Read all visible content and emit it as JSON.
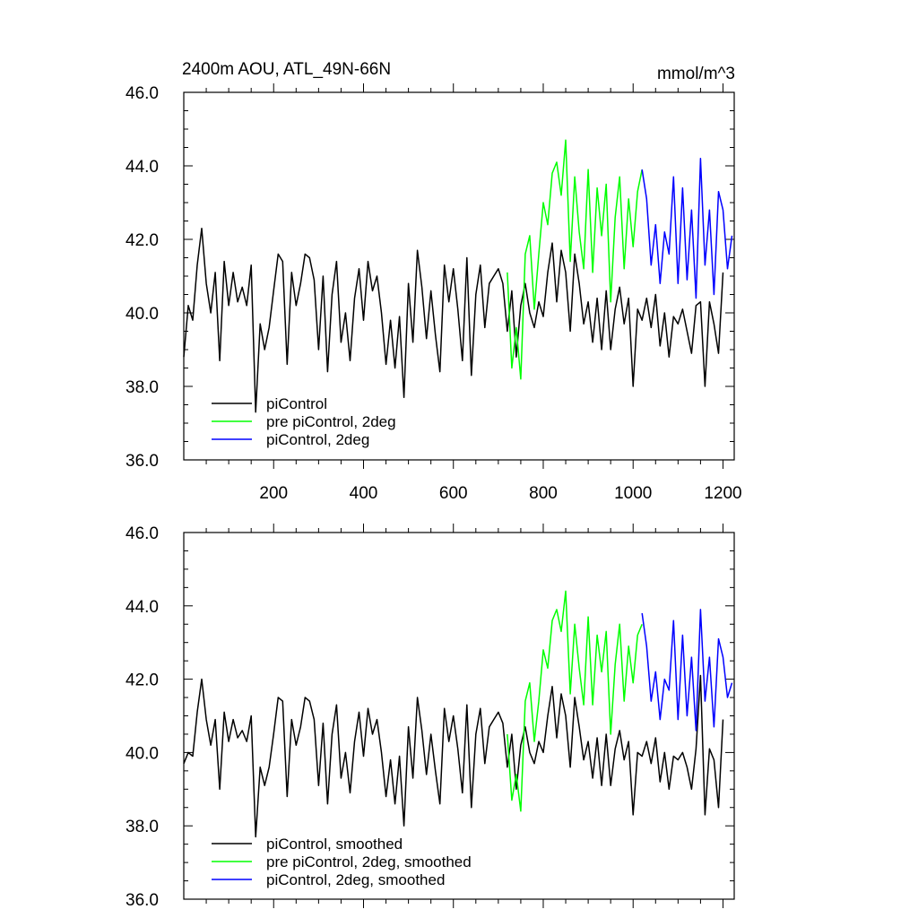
{
  "figure": {
    "title_left": "2400m AOU, ATL_49N-66N",
    "title_right": "mmol/m^3"
  },
  "chart_data": [
    {
      "type": "line",
      "title": "2400m AOU, ATL_49N-66N",
      "units": "mmol/m^3",
      "xlim": [
        0,
        1225
      ],
      "ylim": [
        36,
        46
      ],
      "y_ticks": [
        36,
        38,
        40,
        42,
        44,
        46
      ],
      "y_tick_labels": [
        "36.0",
        "38.0",
        "40.0",
        "42.0",
        "44.0",
        "46.0"
      ],
      "x_ticks": [
        200,
        400,
        600,
        800,
        1000,
        1200
      ],
      "x_tick_labels": [
        "200",
        "400",
        "600",
        "800",
        "1000",
        "1200"
      ],
      "grid": false,
      "legend_position": "bottom-left",
      "series": [
        {
          "name": "piControl",
          "color": "#000000",
          "x": [
            0,
            10,
            20,
            30,
            40,
            50,
            60,
            70,
            80,
            90,
            100,
            110,
            120,
            130,
            140,
            150,
            160,
            170,
            180,
            190,
            200,
            210,
            220,
            230,
            240,
            250,
            260,
            270,
            280,
            290,
            300,
            310,
            320,
            330,
            340,
            350,
            360,
            370,
            380,
            390,
            400,
            410,
            420,
            430,
            440,
            450,
            460,
            470,
            480,
            490,
            500,
            510,
            520,
            530,
            540,
            550,
            560,
            570,
            580,
            590,
            600,
            610,
            620,
            630,
            640,
            650,
            660,
            670,
            680,
            690,
            700,
            710,
            720,
            730,
            740,
            750,
            760,
            770,
            780,
            790,
            800,
            810,
            820,
            830,
            840,
            850,
            860,
            870,
            880,
            890,
            900,
            910,
            920,
            930,
            940,
            950,
            960,
            970,
            980,
            990,
            1000,
            1010,
            1020,
            1030,
            1040,
            1050,
            1060,
            1070,
            1080,
            1090,
            1100,
            1110,
            1120,
            1130,
            1140,
            1150,
            1160,
            1170,
            1180,
            1190,
            1200
          ],
          "values": [
            38.8,
            40.2,
            39.8,
            41.3,
            42.3,
            40.8,
            40.0,
            41.1,
            38.7,
            41.4,
            40.2,
            41.1,
            40.3,
            40.7,
            40.2,
            41.3,
            37.3,
            39.7,
            39.0,
            39.6,
            40.6,
            41.6,
            41.4,
            38.6,
            41.1,
            40.2,
            40.8,
            41.6,
            41.5,
            40.9,
            39.0,
            41.0,
            38.4,
            40.5,
            41.4,
            39.2,
            40.0,
            38.7,
            40.4,
            41.2,
            39.8,
            41.4,
            40.6,
            41.0,
            40.0,
            38.6,
            39.8,
            38.5,
            39.9,
            37.7,
            40.8,
            39.2,
            41.7,
            40.7,
            39.3,
            40.6,
            39.4,
            38.4,
            41.3,
            40.3,
            41.2,
            40.1,
            38.7,
            41.5,
            38.3,
            40.5,
            41.3,
            39.6,
            40.8,
            41.0,
            41.2,
            40.8,
            39.5,
            40.6,
            38.8,
            40.2,
            40.8,
            40.0,
            39.6,
            40.3,
            39.9,
            41.1,
            41.9,
            40.3,
            41.7,
            41.1,
            39.5,
            41.6,
            40.8,
            39.7,
            40.3,
            39.2,
            40.4,
            39.0,
            40.6,
            39.0,
            40.1,
            40.7,
            39.7,
            40.4,
            38.0,
            40.1,
            39.8,
            40.4,
            39.6,
            40.5,
            39.1,
            40.0,
            38.8,
            39.9,
            39.7,
            40.1,
            39.5,
            38.9,
            40.2,
            40.3,
            38.0,
            40.3,
            39.7,
            38.9,
            41.1
          ]
        },
        {
          "name": "pre piControl, 2deg",
          "color": "#00ff00",
          "x": [
            720,
            730,
            740,
            750,
            760,
            770,
            780,
            790,
            800,
            810,
            820,
            830,
            840,
            850,
            860,
            870,
            880,
            890,
            900,
            910,
            920,
            930,
            940,
            950,
            960,
            970,
            980,
            990,
            1000,
            1010,
            1020
          ],
          "values": [
            41.1,
            38.5,
            39.6,
            38.2,
            41.6,
            42.1,
            40.1,
            41.6,
            43.0,
            42.4,
            43.8,
            44.1,
            43.2,
            44.7,
            41.4,
            43.7,
            42.2,
            41.2,
            43.9,
            41.1,
            43.4,
            42.1,
            43.5,
            40.3,
            42.6,
            43.7,
            41.2,
            43.1,
            41.8,
            43.3,
            43.9
          ]
        },
        {
          "name": "piControl, 2deg",
          "color": "#0000ff",
          "x": [
            1020,
            1030,
            1040,
            1050,
            1060,
            1070,
            1080,
            1090,
            1100,
            1110,
            1120,
            1130,
            1140,
            1150,
            1160,
            1170,
            1180,
            1190,
            1200,
            1210,
            1220
          ],
          "values": [
            43.9,
            43.1,
            41.3,
            42.4,
            40.8,
            42.2,
            41.6,
            43.7,
            40.8,
            43.4,
            40.9,
            42.8,
            40.4,
            44.2,
            41.3,
            42.8,
            40.5,
            43.3,
            42.8,
            41.2,
            42.1
          ]
        }
      ]
    },
    {
      "type": "line",
      "xlim": [
        0,
        1225
      ],
      "ylim": [
        36,
        46
      ],
      "y_ticks": [
        36,
        38,
        40,
        42,
        44,
        46
      ],
      "y_tick_labels": [
        "36.0",
        "38.0",
        "40.0",
        "42.0",
        "44.0",
        "46.0"
      ],
      "x_ticks": [
        200,
        400,
        600,
        800,
        1000,
        1200
      ],
      "grid": false,
      "legend_position": "bottom-left",
      "series": [
        {
          "name": "piControl, smoothed",
          "color": "#000000",
          "x": [
            0,
            10,
            20,
            30,
            40,
            50,
            60,
            70,
            80,
            90,
            100,
            110,
            120,
            130,
            140,
            150,
            160,
            170,
            180,
            190,
            200,
            210,
            220,
            230,
            240,
            250,
            260,
            270,
            280,
            290,
            300,
            310,
            320,
            330,
            340,
            350,
            360,
            370,
            380,
            390,
            400,
            410,
            420,
            430,
            440,
            450,
            460,
            470,
            480,
            490,
            500,
            510,
            520,
            530,
            540,
            550,
            560,
            570,
            580,
            590,
            600,
            610,
            620,
            630,
            640,
            650,
            660,
            670,
            680,
            690,
            700,
            710,
            720,
            730,
            740,
            750,
            760,
            770,
            780,
            790,
            800,
            810,
            820,
            830,
            840,
            850,
            860,
            870,
            880,
            890,
            900,
            910,
            920,
            930,
            940,
            950,
            960,
            970,
            980,
            990,
            1000,
            1010,
            1020,
            1030,
            1040,
            1050,
            1060,
            1070,
            1080,
            1090,
            1100,
            1110,
            1120,
            1130,
            1140,
            1150,
            1160,
            1170,
            1180,
            1190,
            1200
          ],
          "values": [
            39.7,
            40.0,
            39.9,
            41.1,
            42.0,
            40.9,
            40.2,
            40.9,
            39.0,
            41.1,
            40.3,
            40.9,
            40.4,
            40.6,
            40.3,
            41.0,
            37.7,
            39.6,
            39.1,
            39.6,
            40.5,
            41.5,
            41.4,
            38.8,
            40.9,
            40.2,
            40.7,
            41.5,
            41.4,
            40.9,
            39.1,
            40.8,
            38.6,
            40.5,
            41.3,
            39.3,
            40.0,
            38.9,
            40.3,
            41.1,
            39.9,
            41.2,
            40.5,
            40.9,
            40.0,
            38.8,
            39.8,
            38.6,
            39.9,
            38.0,
            40.7,
            39.3,
            41.5,
            40.6,
            39.4,
            40.5,
            39.5,
            38.6,
            41.2,
            40.3,
            41.0,
            40.1,
            38.9,
            41.3,
            38.5,
            40.5,
            41.2,
            39.7,
            40.7,
            40.9,
            41.1,
            40.8,
            39.6,
            40.5,
            39.0,
            40.2,
            40.7,
            40.0,
            39.7,
            40.3,
            40.0,
            41.0,
            41.8,
            40.4,
            41.6,
            41.0,
            39.6,
            41.5,
            40.7,
            39.8,
            40.3,
            39.3,
            40.4,
            39.1,
            40.5,
            39.1,
            40.1,
            40.6,
            39.8,
            40.3,
            38.3,
            40.0,
            39.9,
            40.3,
            39.7,
            40.4,
            39.2,
            40.0,
            39.0,
            39.9,
            39.8,
            40.0,
            39.6,
            39.0,
            40.1,
            42.1,
            38.3,
            40.1,
            39.8,
            38.5,
            40.9
          ]
        },
        {
          "name": "pre piControl, 2deg, smoothed",
          "color": "#00ff00",
          "x": [
            720,
            730,
            740,
            750,
            760,
            770,
            780,
            790,
            800,
            810,
            820,
            830,
            840,
            850,
            860,
            870,
            880,
            890,
            900,
            910,
            920,
            930,
            940,
            950,
            960,
            970,
            980,
            990,
            1000,
            1010,
            1020
          ],
          "values": [
            40.5,
            38.7,
            39.4,
            38.4,
            41.4,
            41.9,
            40.3,
            41.4,
            42.8,
            42.3,
            43.6,
            43.9,
            43.3,
            44.4,
            41.6,
            43.5,
            42.3,
            41.3,
            43.7,
            41.3,
            43.2,
            42.2,
            43.3,
            40.5,
            42.4,
            43.5,
            41.4,
            42.9,
            41.9,
            43.2,
            43.5
          ]
        },
        {
          "name": "piControl, 2deg, smoothed",
          "color": "#0000ff",
          "x": [
            1020,
            1030,
            1040,
            1050,
            1060,
            1070,
            1080,
            1090,
            1100,
            1110,
            1120,
            1130,
            1140,
            1150,
            1160,
            1170,
            1180,
            1190,
            1200,
            1210,
            1220
          ],
          "values": [
            43.8,
            42.9,
            41.4,
            42.2,
            40.9,
            42.0,
            41.7,
            43.6,
            40.9,
            43.2,
            41.0,
            42.6,
            40.6,
            43.9,
            41.4,
            42.6,
            40.7,
            43.1,
            42.6,
            41.5,
            41.9
          ]
        }
      ]
    }
  ]
}
